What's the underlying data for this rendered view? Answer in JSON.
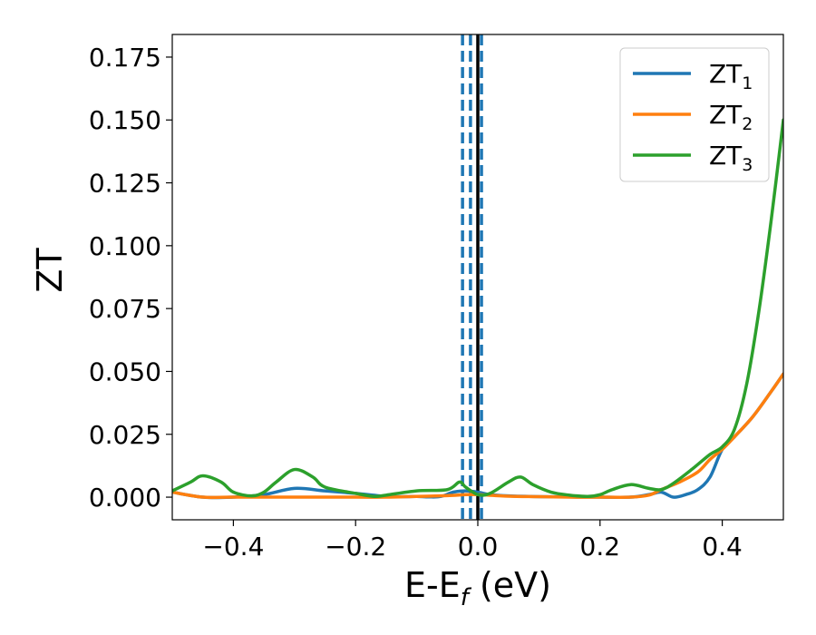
{
  "chart_data": {
    "type": "line",
    "xlabel_main": "E-E",
    "xlabel_sub": "f",
    "xlabel_unit": " (eV)",
    "ylabel": "ZT",
    "xlim": [
      -0.5,
      0.5
    ],
    "ylim": [
      -0.009,
      0.184
    ],
    "x_ticks": [
      -0.4,
      -0.2,
      0.0,
      0.2,
      0.4
    ],
    "x_tick_labels": [
      "−0.4",
      "−0.2",
      "0.0",
      "0.2",
      "0.4"
    ],
    "y_ticks": [
      0.0,
      0.025,
      0.05,
      0.075,
      0.1,
      0.125,
      0.15,
      0.175
    ],
    "y_tick_labels": [
      "0.000",
      "0.025",
      "0.050",
      "0.075",
      "0.100",
      "0.125",
      "0.150",
      "0.175"
    ],
    "grid": false,
    "legend_placement": "top-right",
    "vertical_lines": [
      {
        "x": -0.025,
        "style": "dashed",
        "color": "#1f77b4"
      },
      {
        "x": -0.012,
        "style": "dashed",
        "color": "#1f77b4"
      },
      {
        "x": 0.0,
        "style": "solid",
        "color": "#000000"
      },
      {
        "x": 0.006,
        "style": "dashed",
        "color": "#1f77b4"
      }
    ],
    "series": [
      {
        "name": "ZT",
        "name_sub": "1",
        "color": "#1f77b4",
        "x": [
          -0.5,
          -0.45,
          -0.4,
          -0.35,
          -0.3,
          -0.25,
          -0.2,
          -0.15,
          -0.12,
          -0.1,
          -0.08,
          -0.06,
          -0.04,
          -0.02,
          0.0,
          0.02,
          0.05,
          0.1,
          0.15,
          0.2,
          0.25,
          0.28,
          0.3,
          0.32,
          0.34,
          0.36,
          0.38,
          0.4,
          0.42,
          0.45,
          0.48,
          0.5
        ],
        "values": [
          0.002,
          0.0,
          0.0,
          0.001,
          0.0035,
          0.0025,
          0.0015,
          0.0003,
          0.0002,
          0.0003,
          0.0001,
          0.0003,
          0.002,
          0.0025,
          0.002,
          0.001,
          0.0005,
          0.0002,
          0.0001,
          0.0,
          0.0,
          0.001,
          0.002,
          0.0,
          0.001,
          0.003,
          0.008,
          0.019,
          0.024,
          0.032,
          0.042,
          0.049
        ]
      },
      {
        "name": "ZT",
        "name_sub": "2",
        "color": "#ff7f0e",
        "x": [
          -0.5,
          -0.45,
          -0.4,
          -0.3,
          -0.2,
          -0.15,
          -0.1,
          -0.05,
          -0.02,
          0.0,
          0.05,
          0.1,
          0.15,
          0.2,
          0.25,
          0.28,
          0.3,
          0.33,
          0.36,
          0.38,
          0.4,
          0.42,
          0.45,
          0.48,
          0.5
        ],
        "values": [
          0.002,
          0.0,
          0.0,
          0.0,
          0.0,
          0.0,
          0.0003,
          0.0006,
          0.001,
          0.001,
          0.0004,
          0.0002,
          0.0,
          0.0,
          0.0,
          0.0008,
          0.003,
          0.006,
          0.01,
          0.015,
          0.019,
          0.024,
          0.032,
          0.042,
          0.049
        ]
      },
      {
        "name": "ZT",
        "name_sub": "3",
        "color": "#2ca02c",
        "x": [
          -0.5,
          -0.47,
          -0.45,
          -0.42,
          -0.4,
          -0.37,
          -0.35,
          -0.33,
          -0.3,
          -0.27,
          -0.25,
          -0.2,
          -0.17,
          -0.15,
          -0.1,
          -0.05,
          -0.03,
          -0.02,
          0.0,
          0.02,
          0.05,
          0.07,
          0.09,
          0.12,
          0.15,
          0.18,
          0.2,
          0.22,
          0.25,
          0.28,
          0.3,
          0.32,
          0.35,
          0.38,
          0.4,
          0.42,
          0.44,
          0.46,
          0.48,
          0.5
        ],
        "values": [
          0.0025,
          0.006,
          0.0085,
          0.006,
          0.002,
          0.0005,
          0.002,
          0.006,
          0.011,
          0.008,
          0.004,
          0.0015,
          0.0003,
          0.0008,
          0.0025,
          0.003,
          0.006,
          0.004,
          0.001,
          0.0015,
          0.006,
          0.008,
          0.005,
          0.002,
          0.0008,
          0.0003,
          0.001,
          0.003,
          0.005,
          0.0035,
          0.003,
          0.0055,
          0.011,
          0.017,
          0.02,
          0.027,
          0.045,
          0.074,
          0.11,
          0.15
        ]
      }
    ]
  }
}
